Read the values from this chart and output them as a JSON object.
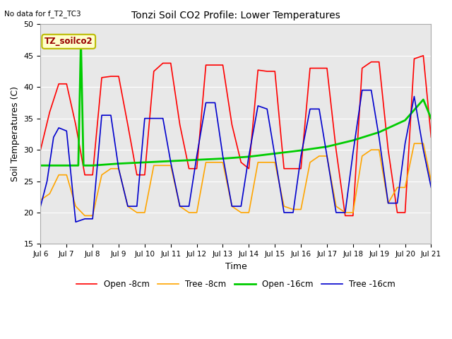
{
  "title": "Tonzi Soil CO2 Profile: Lower Temperatures",
  "no_data_text": "No data for f_T2_TC3",
  "xlabel": "Time",
  "ylabel": "Soil Temperatures (C)",
  "ylim": [
    15,
    50
  ],
  "xlim": [
    0,
    15
  ],
  "bg_color": "#e8e8e8",
  "annotation_text": "TZ_soilco2",
  "xtick_labels": [
    "Jul 6",
    "Jul 7",
    "Jul 8",
    "Jul 9",
    "Jul 10",
    "Jul 11",
    "Jul 12",
    "Jul 13",
    "Jul 14",
    "Jul 15",
    "Jul 16",
    "Jul 17",
    "Jul 18",
    "Jul 19",
    "Jul 20",
    "Jul 21"
  ],
  "xtick_positions": [
    0,
    1,
    2,
    3,
    4,
    5,
    6,
    7,
    8,
    9,
    10,
    11,
    12,
    13,
    14,
    15
  ],
  "ytick_positions": [
    15,
    20,
    25,
    30,
    35,
    40,
    45,
    50
  ],
  "legend_labels": [
    "Open -8cm",
    "Tree -8cm",
    "Open -16cm",
    "Tree -16cm"
  ],
  "line_colors": [
    "#ff0000",
    "#ffa500",
    "#00cc00",
    "#0000cd"
  ],
  "red_x": [
    0,
    0.35,
    0.7,
    1.0,
    1.35,
    1.7,
    2.0,
    2.35,
    2.7,
    3.0,
    3.35,
    3.7,
    4.0,
    4.35,
    4.7,
    5.0,
    5.35,
    5.7,
    6.0,
    6.35,
    6.7,
    7.0,
    7.35,
    7.7,
    8.0,
    8.35,
    8.7,
    9.0,
    9.35,
    9.7,
    10.0,
    10.35,
    10.7,
    11.0,
    11.35,
    11.7,
    12.0,
    12.35,
    12.7,
    13.0,
    13.35,
    13.7,
    14.0,
    14.35,
    14.7,
    15.0
  ],
  "red_y": [
    30,
    36,
    40.5,
    40.5,
    34,
    26,
    26,
    41.5,
    41.7,
    41.7,
    34,
    26,
    26,
    42.5,
    43.8,
    43.8,
    34,
    27,
    27,
    43.5,
    43.5,
    43.5,
    34,
    28,
    27,
    42.7,
    42.5,
    42.5,
    27,
    27,
    27,
    43,
    43,
    43,
    30,
    19.5,
    19.5,
    43,
    44,
    44,
    30,
    20,
    20,
    44.5,
    45,
    32
  ],
  "orange_x": [
    0,
    0.35,
    0.7,
    1.0,
    1.35,
    1.7,
    2.0,
    2.35,
    2.7,
    3.0,
    3.35,
    3.7,
    4.0,
    4.35,
    4.7,
    5.0,
    5.35,
    5.7,
    6.0,
    6.35,
    6.7,
    7.0,
    7.35,
    7.7,
    8.0,
    8.35,
    8.7,
    9.0,
    9.35,
    9.7,
    10.0,
    10.35,
    10.7,
    11.0,
    11.35,
    11.7,
    12.0,
    12.35,
    12.7,
    13.0,
    13.35,
    13.7,
    14.0,
    14.35,
    14.7,
    15.0
  ],
  "orange_y": [
    22,
    23,
    26,
    26,
    21,
    19.5,
    19.5,
    26,
    27,
    27,
    21,
    20,
    20,
    27.5,
    27.5,
    27.5,
    21,
    20,
    20,
    28,
    28,
    28,
    21,
    20,
    20,
    28,
    28,
    28,
    21,
    20.5,
    20.5,
    28,
    29,
    29,
    21,
    20,
    20,
    29,
    30,
    30,
    21.5,
    24,
    24,
    31,
    31,
    25
  ],
  "green_x": [
    0,
    1.45,
    1.55,
    1.65,
    2.0,
    3.0,
    4.0,
    5.0,
    6.0,
    7.0,
    8.0,
    9.0,
    10.0,
    11.0,
    12.0,
    13.0,
    14.0,
    14.7,
    15.0
  ],
  "green_y": [
    27.5,
    27.5,
    47.5,
    27.5,
    27.5,
    27.8,
    28.0,
    28.2,
    28.4,
    28.6,
    28.9,
    29.4,
    29.9,
    30.5,
    31.5,
    32.8,
    34.7,
    38.0,
    35.0
  ],
  "blue_x": [
    0,
    0.25,
    0.5,
    0.7,
    1.0,
    1.35,
    1.7,
    2.0,
    2.35,
    2.7,
    3.0,
    3.35,
    3.7,
    4.0,
    4.35,
    4.7,
    5.0,
    5.35,
    5.7,
    6.0,
    6.35,
    6.7,
    7.0,
    7.35,
    7.7,
    8.0,
    8.35,
    8.7,
    9.0,
    9.35,
    9.7,
    10.0,
    10.35,
    10.7,
    11.0,
    11.35,
    11.7,
    12.0,
    12.35,
    12.7,
    13.0,
    13.35,
    13.7,
    14.0,
    14.35,
    14.7,
    15.0
  ],
  "blue_y": [
    21,
    25,
    32,
    33.5,
    33,
    18.5,
    19,
    19,
    35.5,
    35.5,
    27,
    21,
    21,
    35,
    35,
    35,
    28,
    21,
    21,
    29,
    37.5,
    37.5,
    29,
    21,
    21,
    29,
    37,
    36.5,
    29,
    20,
    20,
    29,
    36.5,
    36.5,
    29,
    20,
    20,
    29.5,
    39.5,
    39.5,
    32,
    21.5,
    21.5,
    31,
    38.5,
    30,
    24
  ]
}
